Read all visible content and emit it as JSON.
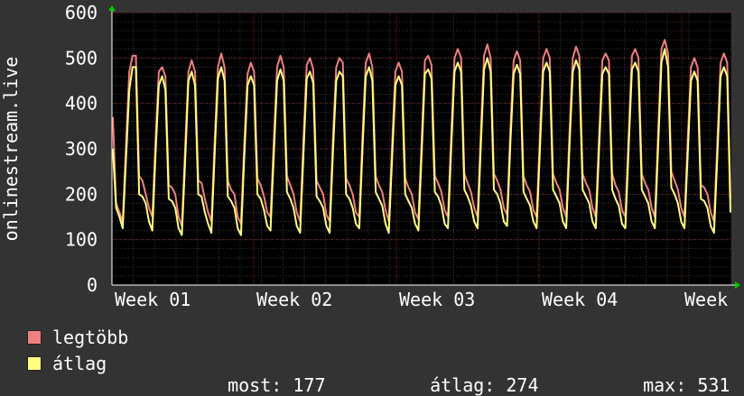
{
  "chart_data": {
    "type": "line",
    "ylabel": "onlinestream.live",
    "ylim": [
      0,
      600
    ],
    "yticks": [
      0,
      100,
      200,
      300,
      400,
      500,
      600
    ],
    "xticks": [
      "Week 01",
      "Week 02",
      "Week 03",
      "Week 04",
      "Week"
    ],
    "grid": true,
    "series": [
      {
        "name": "legtöbb",
        "color": "#f08080",
        "values": [
          370,
          180,
          160,
          140,
          310,
          470,
          505,
          505,
          240,
          230,
          200,
          170,
          150,
          320,
          470,
          480,
          460,
          220,
          215,
          200,
          150,
          130,
          300,
          470,
          495,
          470,
          230,
          225,
          190,
          160,
          140,
          320,
          480,
          510,
          480,
          230,
          210,
          200,
          150,
          135,
          310,
          465,
          490,
          470,
          235,
          220,
          195,
          160,
          150,
          320,
          480,
          505,
          480,
          240,
          220,
          200,
          160,
          140,
          315,
          485,
          500,
          475,
          230,
          215,
          200,
          155,
          140,
          325,
          480,
          500,
          490,
          235,
          220,
          200,
          160,
          150,
          330,
          490,
          510,
          480,
          240,
          220,
          205,
          165,
          140,
          310,
          470,
          490,
          470,
          235,
          215,
          200,
          160,
          145,
          320,
          495,
          505,
          485,
          240,
          225,
          205,
          165,
          150,
          330,
          500,
          520,
          500,
          245,
          225,
          205,
          170,
          150,
          335,
          505,
          530,
          500,
          245,
          230,
          210,
          170,
          155,
          340,
          495,
          515,
          495,
          240,
          220,
          205,
          165,
          150,
          330,
          500,
          520,
          500,
          245,
          225,
          210,
          170,
          150,
          335,
          500,
          525,
          505,
          245,
          225,
          210,
          170,
          150,
          330,
          495,
          510,
          495,
          245,
          220,
          205,
          165,
          150,
          330,
          505,
          520,
          500,
          245,
          225,
          210,
          170,
          150,
          340,
          520,
          540,
          510,
          250,
          230,
          210,
          170,
          150,
          320,
          480,
          500,
          480,
          220,
          215,
          200,
          160,
          140,
          310,
          490,
          510,
          490,
          190
        ]
      },
      {
        "name": "átlag",
        "color": "#ffff80",
        "values": [
          300,
          170,
          150,
          125,
          280,
          430,
          480,
          480,
          200,
          195,
          180,
          140,
          120,
          290,
          440,
          460,
          430,
          190,
          185,
          170,
          125,
          110,
          270,
          450,
          470,
          440,
          200,
          195,
          160,
          135,
          115,
          290,
          455,
          480,
          450,
          195,
          185,
          170,
          125,
          110,
          280,
          440,
          460,
          440,
          200,
          190,
          165,
          130,
          120,
          290,
          450,
          475,
          450,
          205,
          190,
          170,
          130,
          115,
          285,
          455,
          470,
          445,
          195,
          185,
          170,
          130,
          115,
          295,
          450,
          470,
          460,
          200,
          190,
          170,
          135,
          125,
          300,
          460,
          480,
          450,
          205,
          190,
          175,
          135,
          115,
          280,
          440,
          460,
          440,
          200,
          185,
          170,
          135,
          120,
          290,
          465,
          475,
          455,
          205,
          195,
          175,
          135,
          125,
          300,
          470,
          490,
          470,
          210,
          195,
          175,
          140,
          125,
          305,
          475,
          500,
          470,
          210,
          200,
          180,
          140,
          130,
          310,
          465,
          485,
          465,
          205,
          190,
          175,
          140,
          125,
          300,
          470,
          490,
          470,
          210,
          195,
          180,
          140,
          125,
          305,
          470,
          495,
          475,
          210,
          195,
          180,
          140,
          125,
          300,
          465,
          480,
          465,
          210,
          190,
          175,
          135,
          125,
          300,
          475,
          490,
          470,
          210,
          195,
          180,
          140,
          125,
          310,
          490,
          520,
          480,
          215,
          200,
          180,
          140,
          125,
          290,
          450,
          470,
          450,
          190,
          185,
          170,
          130,
          115,
          280,
          460,
          480,
          460,
          160
        ]
      }
    ],
    "stats": [
      {
        "label": "most:",
        "value": "177"
      },
      {
        "label": "átlag:",
        "value": "274"
      },
      {
        "label": "max:",
        "value": "531"
      }
    ]
  }
}
